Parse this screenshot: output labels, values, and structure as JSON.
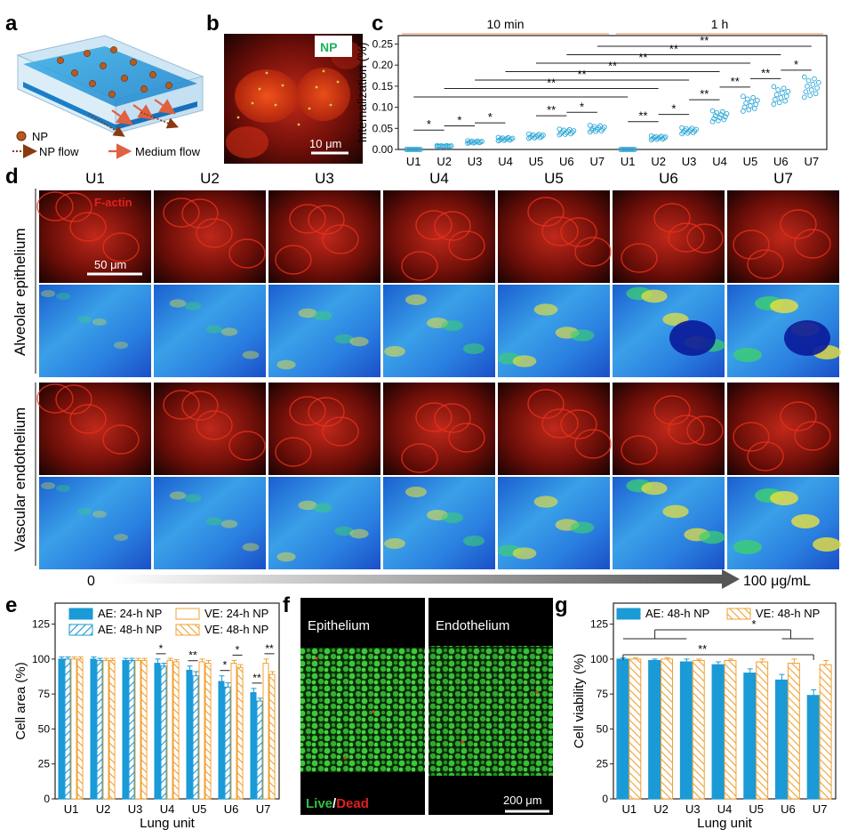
{
  "panel_letters": {
    "a": "a",
    "b": "b",
    "c": "c",
    "d": "d",
    "e": "e",
    "f": "f",
    "g": "g"
  },
  "panel_a": {
    "np": "NP",
    "np_flow": "NP flow",
    "medium_flow": "Medium flow"
  },
  "panel_b": {
    "label": "NP",
    "scale": "10 μm"
  },
  "panel_d": {
    "columns": [
      "U1",
      "U2",
      "U3",
      "U4",
      "U5",
      "U6",
      "U7"
    ],
    "row_group_1": "Alveolar epithelium",
    "row_group_2": "Vascular endothelium",
    "stain": "F-actin",
    "scale": "50 μm",
    "conc_start": "0",
    "conc_end": "100 μg/mL"
  },
  "panel_f": {
    "left": "Epithelium",
    "right": "Endothelium",
    "live": "Live",
    "slash": "/",
    "dead": "Dead",
    "scale": "200 μm"
  },
  "colors": {
    "ae": "#1a9ad6",
    "ve": "#f0a030",
    "scatter": "#2aa7d8",
    "bracket": "#f5c6a8"
  },
  "chart_data": [
    {
      "id": "c",
      "type": "scatter",
      "ylabel": "Internalization (%)",
      "yticks": [
        "0.00",
        "0.05",
        "0.10",
        "0.15",
        "0.20",
        "0.25"
      ],
      "ylim": [
        0,
        0.27
      ],
      "groups": [
        {
          "name": "10 min",
          "categories": [
            "U1",
            "U2",
            "U3",
            "U4",
            "U5",
            "U6",
            "U7"
          ],
          "means": [
            0.0,
            0.008,
            0.018,
            0.025,
            0.032,
            0.042,
            0.05
          ]
        },
        {
          "name": "1 h",
          "categories": [
            "U1",
            "U2",
            "U3",
            "U4",
            "U5",
            "U6",
            "U7"
          ],
          "means": [
            0.0,
            0.028,
            0.045,
            0.08,
            0.11,
            0.13,
            0.15
          ]
        }
      ],
      "significance": [
        {
          "from": "10min U1",
          "to": "10min U2",
          "mark": "*"
        },
        {
          "from": "10min U2",
          "to": "10min U3",
          "mark": "*"
        },
        {
          "from": "10min U3",
          "to": "10min U4",
          "mark": "*"
        },
        {
          "from": "10min U5",
          "to": "10min U6",
          "mark": "**"
        },
        {
          "from": "10min U6",
          "to": "10min U7",
          "mark": "*"
        },
        {
          "from": "1h U1",
          "to": "1h U2",
          "mark": "**"
        },
        {
          "from": "1h U2",
          "to": "1h U3",
          "mark": "*"
        },
        {
          "from": "1h U3",
          "to": "1h U4",
          "mark": "**"
        },
        {
          "from": "1h U4",
          "to": "1h U5",
          "mark": "**"
        },
        {
          "from": "1h U5",
          "to": "1h U6",
          "mark": "**"
        },
        {
          "from": "1h U6",
          "to": "1h U7",
          "mark": "*"
        },
        {
          "from": "10min U1",
          "to": "1h U1",
          "mark": ""
        },
        {
          "from": "10min U2",
          "to": "1h U2",
          "mark": "**"
        },
        {
          "from": "10min U3",
          "to": "1h U3",
          "mark": "**"
        },
        {
          "from": "10min U4",
          "to": "1h U4",
          "mark": "**"
        },
        {
          "from": "10min U5",
          "to": "1h U5",
          "mark": "**"
        },
        {
          "from": "10min U6",
          "to": "1h U6",
          "mark": "**"
        },
        {
          "from": "10min U7",
          "to": "1h U7",
          "mark": "**"
        }
      ]
    },
    {
      "id": "e",
      "type": "bar",
      "xlabel": "Lung unit",
      "ylabel": "Cell area (%)",
      "categories": [
        "U1",
        "U2",
        "U3",
        "U4",
        "U5",
        "U6",
        "U7"
      ],
      "yticks": [
        "0",
        "25",
        "50",
        "75",
        "100",
        "125"
      ],
      "ylim": [
        0,
        140
      ],
      "legend": [
        "AE: 24-h NP",
        "VE: 24-h NP",
        "AE: 48-h NP",
        "VE: 48-h NP"
      ],
      "series": [
        {
          "name": "AE: 24-h NP",
          "values": [
            100,
            100,
            99,
            97,
            92,
            84,
            76
          ],
          "errors": [
            1.5,
            1.5,
            1.5,
            3,
            3,
            4,
            3
          ]
        },
        {
          "name": "AE: 48-h NP",
          "values": [
            100,
            99,
            99,
            95,
            88,
            80,
            70
          ],
          "errors": [
            1.5,
            1.5,
            1.5,
            2,
            3,
            3,
            2
          ]
        },
        {
          "name": "VE: 24-h NP",
          "values": [
            100,
            99,
            99,
            99,
            98,
            97,
            97
          ],
          "errors": [
            1.5,
            1.5,
            1.5,
            1.5,
            2,
            2,
            3
          ]
        },
        {
          "name": "VE: 48-h NP",
          "values": [
            100,
            99,
            99,
            98,
            97,
            94,
            89
          ],
          "errors": [
            1.5,
            1.5,
            1.5,
            1.5,
            2,
            2,
            2
          ]
        }
      ],
      "significance": [
        {
          "category": "U4",
          "pair": "AE",
          "mark": "*"
        },
        {
          "category": "U5",
          "pair": "AE",
          "mark": "**"
        },
        {
          "category": "U6",
          "pair": "AE",
          "mark": "*"
        },
        {
          "category": "U6",
          "pair": "VE",
          "mark": "*"
        },
        {
          "category": "U7",
          "pair": "AE",
          "mark": "**"
        },
        {
          "category": "U7",
          "pair": "VE",
          "mark": "**"
        }
      ]
    },
    {
      "id": "g",
      "type": "bar",
      "xlabel": "Lung unit",
      "ylabel": "Cell viability (%)",
      "categories": [
        "U1",
        "U2",
        "U3",
        "U4",
        "U5",
        "U6",
        "U7"
      ],
      "yticks": [
        "0",
        "25",
        "50",
        "75",
        "100",
        "125"
      ],
      "ylim": [
        0,
        140
      ],
      "legend": [
        "AE: 48-h NP",
        "VE: 48-h NP"
      ],
      "series": [
        {
          "name": "AE: 48-h NP",
          "values": [
            100,
            99,
            98,
            96,
            90,
            85,
            74
          ],
          "errors": [
            1,
            1,
            2,
            2,
            3,
            4,
            4
          ]
        },
        {
          "name": "VE: 48-h NP",
          "values": [
            100,
            100,
            99,
            99,
            98,
            97,
            96
          ],
          "errors": [
            1,
            1,
            1,
            1,
            2,
            3,
            3
          ]
        }
      ],
      "significance": [
        {
          "mark": "**"
        },
        {
          "mark": "*"
        }
      ]
    }
  ]
}
